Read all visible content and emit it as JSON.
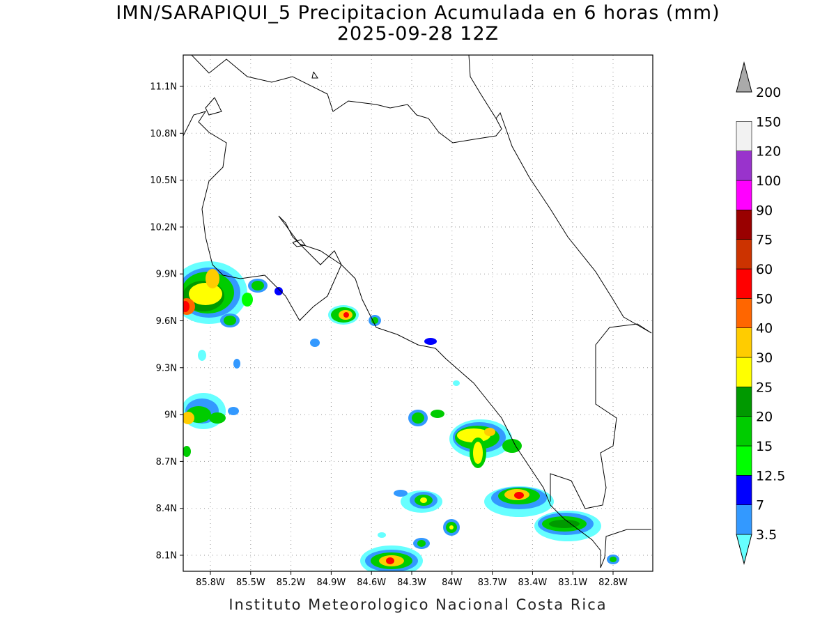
{
  "title": {
    "line1": "IMN/SARAPIQUI_5 Precipitacion Acumulada en 6 horas (mm)",
    "line2": "2025-09-28 12Z"
  },
  "footer": "Instituto Meteorologico Nacional Costa Rica",
  "map": {
    "lat_labels": [
      "11.1N",
      "10.8N",
      "10.5N",
      "10.2N",
      "9.9N",
      "9.6N",
      "9.3N",
      "9N",
      "8.7N",
      "8.4N",
      "8.1N"
    ],
    "lon_labels": [
      "85.8W",
      "85.5W",
      "85.2W",
      "84.9W",
      "84.6W",
      "84.3W",
      "84W",
      "83.7W",
      "83.4W",
      "83.1W",
      "82.8W"
    ]
  },
  "colorbar": {
    "labels": [
      "3.5",
      "7",
      "12.5",
      "15",
      "20",
      "25",
      "30",
      "40",
      "50",
      "60",
      "75",
      "90",
      "100",
      "120",
      "150",
      "200"
    ],
    "colors": [
      "#66ffff",
      "#3399ff",
      "#0000ff",
      "#00ff00",
      "#00cc00",
      "#009900",
      "#ffff00",
      "#ffcc00",
      "#ff6600",
      "#ff0000",
      "#cc3300",
      "#990000",
      "#ff00ff",
      "#9933cc",
      "#f2f2f2",
      "#aaaaaa"
    ]
  }
}
